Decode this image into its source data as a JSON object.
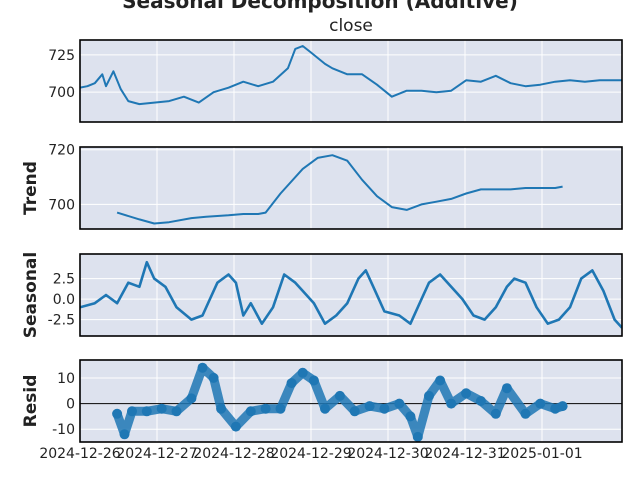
{
  "figure": {
    "suptitle": "Seasonal Decomposition (Additive)",
    "subtitle": "close"
  },
  "colors": {
    "line": "#1f77b4",
    "panel_bg": "#dde2ee",
    "grid": "#ffffff",
    "frame": "#000000",
    "zero_line": "#000000"
  },
  "chart_data": [
    {
      "name": "observed",
      "type": "line",
      "title": "close",
      "ylabel": "",
      "ylim": [
        680,
        735
      ],
      "yticks": [
        700,
        725
      ],
      "xlim": [
        0,
        7.3
      ],
      "xtick_labels": [
        "2024-12-26",
        "2024-12-27",
        "2024-12-28",
        "2024-12-29",
        "2024-12-30",
        "2024-12-31",
        "2025-01-01"
      ],
      "grid": true,
      "x": [
        0,
        0.1,
        0.2,
        0.3,
        0.35,
        0.45,
        0.55,
        0.65,
        0.8,
        1.0,
        1.2,
        1.4,
        1.6,
        1.8,
        2.0,
        2.2,
        2.4,
        2.6,
        2.8,
        2.9,
        3.0,
        3.1,
        3.2,
        3.3,
        3.4,
        3.6,
        3.8,
        4.0,
        4.2,
        4.4,
        4.6,
        4.8,
        5.0,
        5.2,
        5.4,
        5.6,
        5.8,
        6.0,
        6.2,
        6.4,
        6.6,
        6.8,
        7.0,
        7.3
      ],
      "y": [
        703,
        704,
        706,
        712,
        704,
        714,
        702,
        694,
        692,
        693,
        694,
        697,
        693,
        700,
        703,
        707,
        704,
        707,
        716,
        729,
        731,
        727,
        723,
        719,
        716,
        712,
        712,
        705,
        697,
        701,
        701,
        700,
        701,
        708,
        707,
        711,
        706,
        704,
        705,
        707,
        708,
        707,
        708,
        708
      ]
    },
    {
      "name": "trend",
      "type": "line",
      "title": "",
      "ylabel": "Trend",
      "ylim": [
        691,
        721
      ],
      "yticks": [
        700,
        720
      ],
      "xlim": [
        0,
        7.3
      ],
      "grid": true,
      "x": [
        0.5,
        0.8,
        1.0,
        1.2,
        1.5,
        1.7,
        2.0,
        2.2,
        2.4,
        2.5,
        2.7,
        3.0,
        3.2,
        3.4,
        3.6,
        3.8,
        4.0,
        4.2,
        4.4,
        4.6,
        4.8,
        5.0,
        5.2,
        5.4,
        5.6,
        5.8,
        6.0,
        6.2,
        6.4,
        6.5
      ],
      "y": [
        697,
        694.5,
        693,
        693.5,
        695,
        695.5,
        696,
        696.5,
        696.5,
        697,
        704,
        713,
        717,
        718,
        716,
        709,
        703,
        699,
        698,
        700,
        701,
        702,
        704,
        705.5,
        705.5,
        705.5,
        706,
        706,
        706,
        706.5
      ]
    },
    {
      "name": "seasonal",
      "type": "line",
      "title": "",
      "ylabel": "Seasonal",
      "ylim": [
        -4.5,
        5.5
      ],
      "yticks": [
        -2.5,
        0.0,
        2.5
      ],
      "xlim": [
        0,
        7.3
      ],
      "grid": true,
      "x": [
        0,
        0.2,
        0.35,
        0.5,
        0.65,
        0.8,
        0.9,
        1.0,
        1.15,
        1.3,
        1.5,
        1.65,
        1.75,
        1.85,
        2.0,
        2.1,
        2.2,
        2.3,
        2.45,
        2.6,
        2.75,
        2.9,
        3.0,
        3.15,
        3.3,
        3.45,
        3.6,
        3.75,
        3.85,
        3.95,
        4.1,
        4.3,
        4.45,
        4.6,
        4.7,
        4.85,
        5.0,
        5.15,
        5.3,
        5.45,
        5.6,
        5.75,
        5.85,
        6.0,
        6.15,
        6.3,
        6.45,
        6.6,
        6.75,
        6.9,
        7.05,
        7.2,
        7.3
      ],
      "y": [
        -1,
        -0.5,
        0.5,
        -0.5,
        2,
        1.5,
        4.5,
        2.5,
        1.5,
        -1,
        -2.5,
        -2,
        0,
        2,
        3,
        2,
        -2,
        -0.5,
        -3,
        -1,
        3,
        2,
        1,
        -0.5,
        -3,
        -2,
        -0.5,
        2.5,
        3.5,
        1.5,
        -1.5,
        -2,
        -3,
        0,
        2,
        3,
        1.5,
        0,
        -2,
        -2.5,
        -1,
        1.5,
        2.5,
        2,
        -1,
        -3,
        -2.5,
        -1,
        2.5,
        3.5,
        1,
        -2.5,
        -3.5
      ]
    },
    {
      "name": "resid",
      "type": "scatter",
      "title": "",
      "ylabel": "Resid",
      "ylim": [
        -15,
        17
      ],
      "yticks": [
        -10,
        0,
        10
      ],
      "xlim": [
        0,
        7.3
      ],
      "grid": true,
      "zero_line": 0,
      "x": [
        0.5,
        0.6,
        0.7,
        0.9,
        1.1,
        1.3,
        1.5,
        1.65,
        1.8,
        1.9,
        2.1,
        2.3,
        2.5,
        2.7,
        2.85,
        3.0,
        3.15,
        3.3,
        3.5,
        3.7,
        3.9,
        4.1,
        4.3,
        4.45,
        4.55,
        4.7,
        4.85,
        5.0,
        5.2,
        5.4,
        5.6,
        5.75,
        6.0,
        6.2,
        6.4,
        6.5
      ],
      "y": [
        -4,
        -12,
        -3,
        -3,
        -2,
        -3,
        2,
        14,
        10,
        -2,
        -9,
        -3,
        -2,
        -2,
        8,
        12,
        9,
        -2,
        3,
        -3,
        -1,
        -2,
        0,
        -5,
        -13,
        3,
        9,
        0,
        4,
        1,
        -4,
        6,
        -4,
        0,
        -2,
        -1
      ]
    }
  ]
}
